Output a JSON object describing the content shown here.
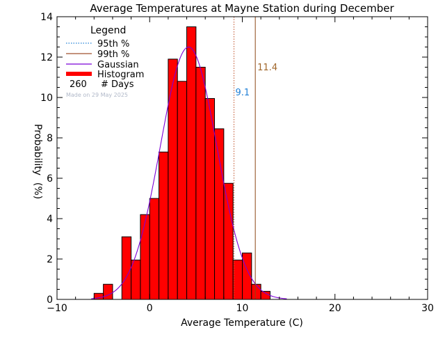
{
  "chart_data": {
    "type": "bar",
    "title": "Average Temperatures at Mayne Station during December",
    "xlabel": "Average Temperature (C)",
    "ylabel": "Probability",
    "ylabel_unit": "(%)",
    "xlim": [
      -10,
      30
    ],
    "ylim": [
      0,
      14
    ],
    "x_ticks": [
      -10,
      0,
      10,
      20,
      30
    ],
    "y_ticks": [
      0,
      2,
      4,
      6,
      8,
      10,
      12,
      14
    ],
    "bin_width": 1,
    "bins": [
      {
        "x": -6,
        "value": 0.3
      },
      {
        "x": -5,
        "value": 0.75
      },
      {
        "x": -4,
        "value": 0.0
      },
      {
        "x": -3,
        "value": 3.1
      },
      {
        "x": -2,
        "value": 1.95
      },
      {
        "x": -1,
        "value": 4.2
      },
      {
        "x": 0,
        "value": 5.0
      },
      {
        "x": 1,
        "value": 7.3
      },
      {
        "x": 2,
        "value": 11.9
      },
      {
        "x": 3,
        "value": 10.8
      },
      {
        "x": 4,
        "value": 13.5
      },
      {
        "x": 5,
        "value": 11.5
      },
      {
        "x": 6,
        "value": 9.95
      },
      {
        "x": 7,
        "value": 8.45
      },
      {
        "x": 8,
        "value": 5.75
      },
      {
        "x": 9,
        "value": 1.95
      },
      {
        "x": 10,
        "value": 2.3
      },
      {
        "x": 11,
        "value": 0.75
      },
      {
        "x": 12,
        "value": 0.4
      }
    ],
    "gaussian": {
      "peak": 12.5,
      "mean": 4.2,
      "sigma": 3.05
    },
    "percentile_95": {
      "value": 9.1,
      "label": "9.1",
      "color": "#c0522a",
      "label_color": "#1f7fd6"
    },
    "percentile_99": {
      "value": 11.4,
      "label": "11.4",
      "color": "#8b4513",
      "label_color": "#a0662a"
    },
    "colors": {
      "histogram": "#ff0000",
      "gaussian": "#7b00d6",
      "p95": "#1f7fd6",
      "p99": "#a0522d"
    },
    "legend": {
      "title": "Legend",
      "entries": [
        {
          "label": "95th %",
          "style": "dotted"
        },
        {
          "label": "99th %",
          "style": "solid-brown"
        },
        {
          "label": "Gaussian",
          "style": "solid-purple"
        },
        {
          "label": "Histogram",
          "style": "thick-red"
        }
      ],
      "days_count": "260",
      "days_label": "# Days",
      "made_on": "Made on 29 May 2025",
      "placement": "top-left"
    }
  }
}
